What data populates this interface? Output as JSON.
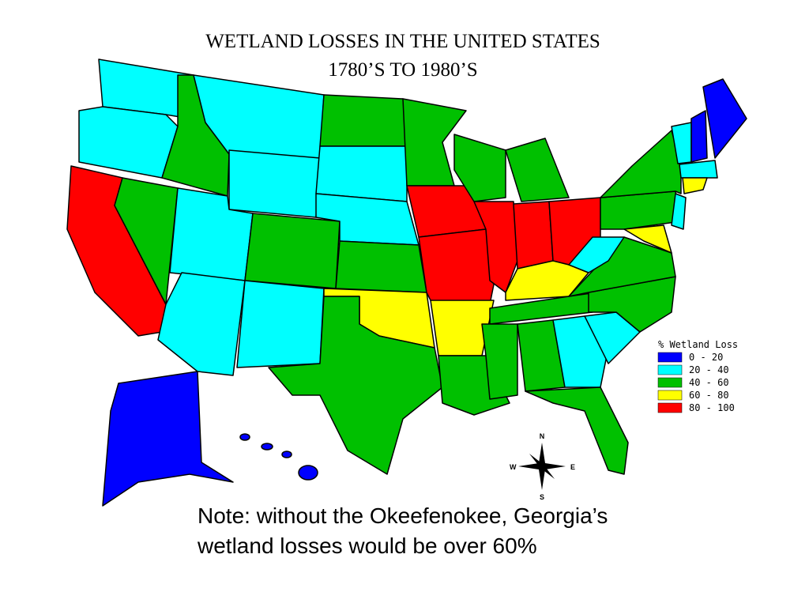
{
  "title": [
    "WETLAND LOSSES IN THE UNITED STATES",
    "1780’S TO 1980’S"
  ],
  "legend": {
    "title": "% Wetland Loss",
    "items": [
      {
        "label": "0 - 20",
        "color": "#0000ff"
      },
      {
        "label": "20 - 40",
        "color": "#00ffff"
      },
      {
        "label": "40 - 60",
        "color": "#00c000"
      },
      {
        "label": "60 - 80",
        "color": "#ffff00"
      },
      {
        "label": "80 - 100",
        "color": "#ff0000"
      }
    ]
  },
  "compass": {
    "n": "N",
    "e": "E",
    "s": "S",
    "w": "W"
  },
  "note": [
    "Note: without the Okeefenokee, Georgia’s",
    "wetland losses would be over 60%"
  ]
}
